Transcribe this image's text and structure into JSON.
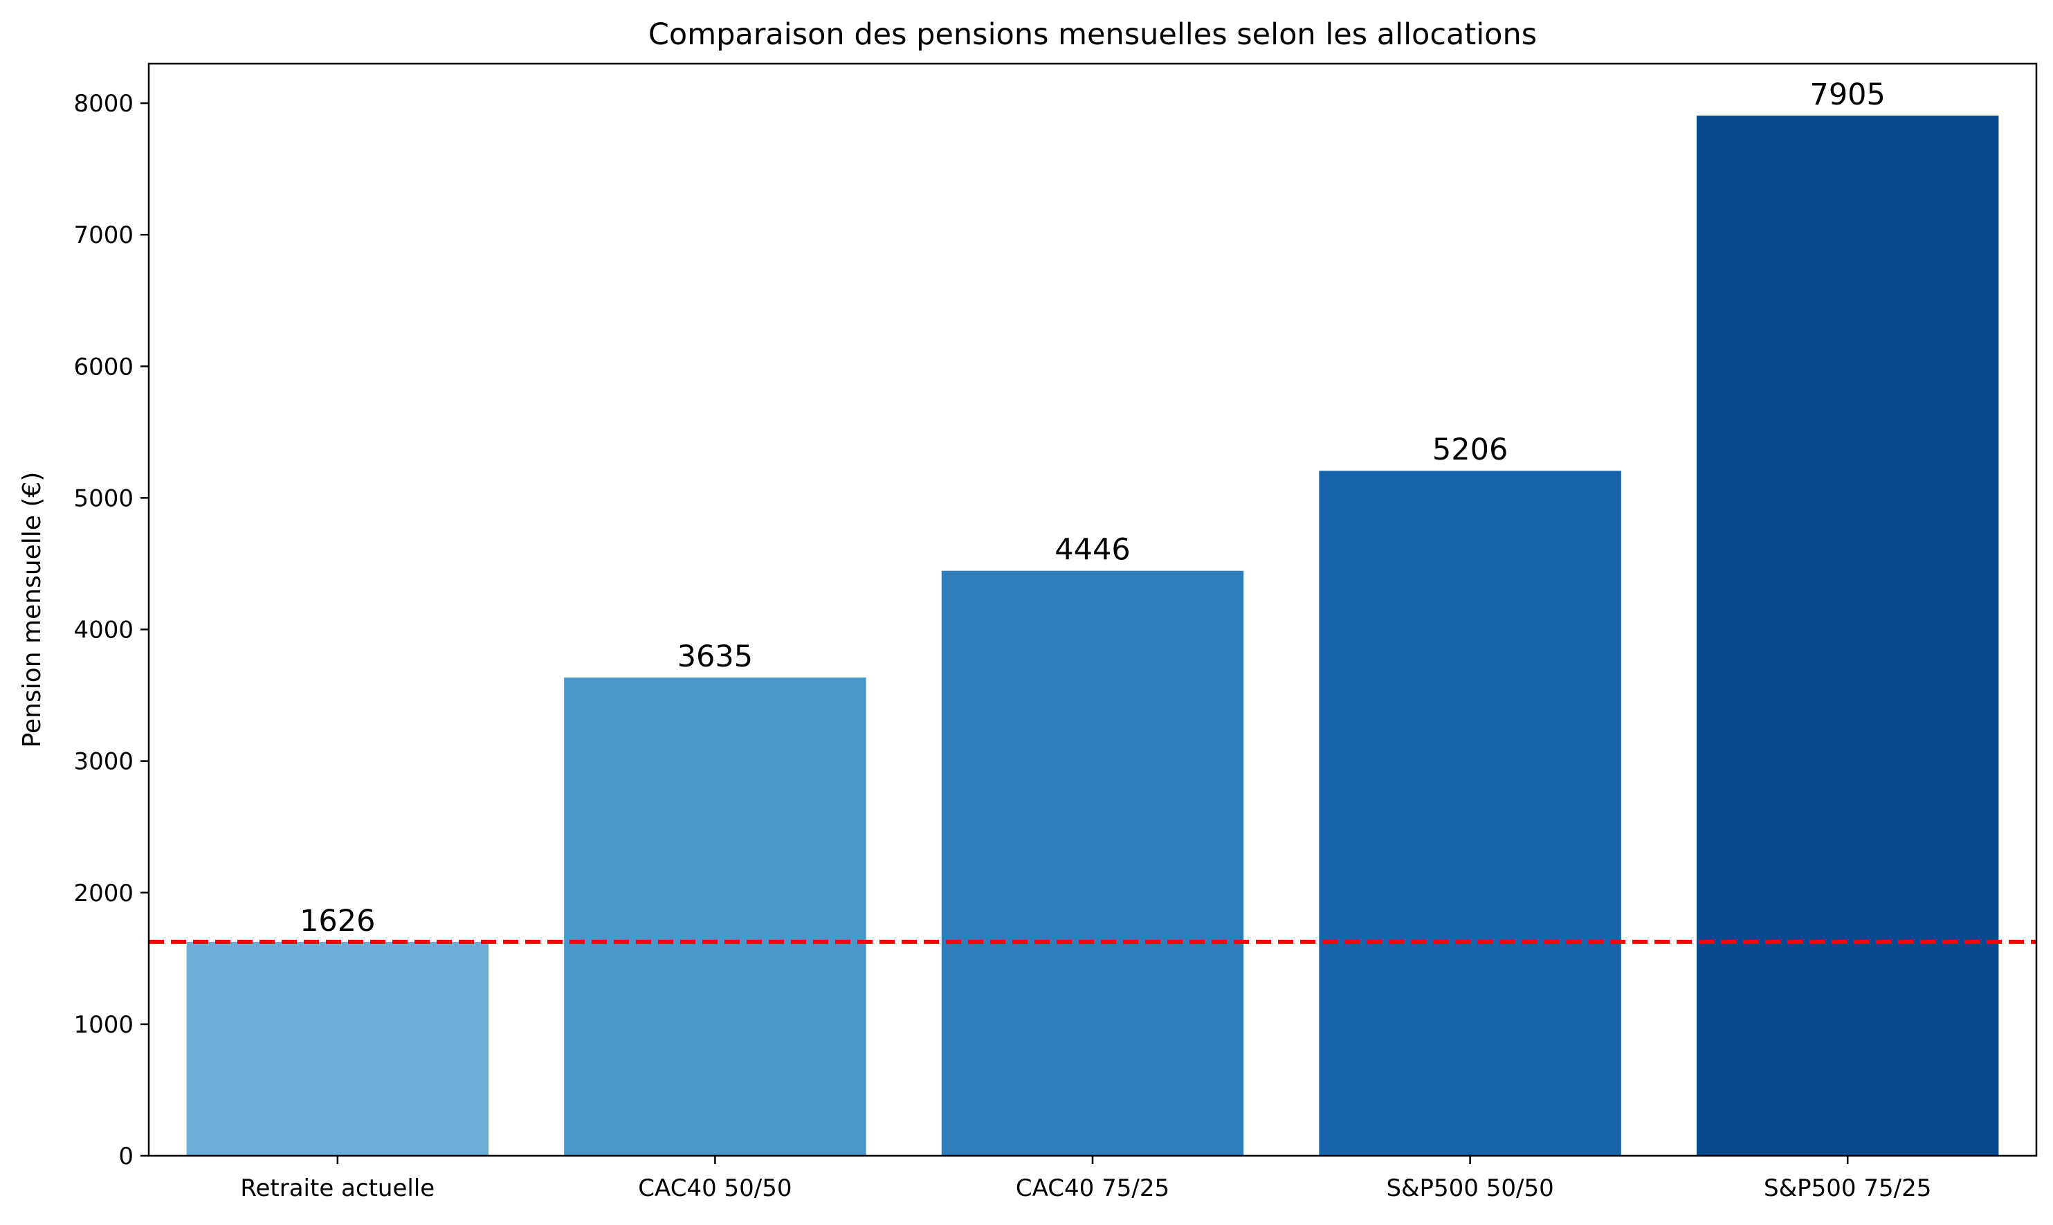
{
  "chart_data": {
    "type": "bar",
    "title": "Comparaison des pensions mensuelles selon les allocations",
    "xlabel": "",
    "ylabel": "Pension mensuelle (€)",
    "categories": [
      "Retraite actuelle",
      "CAC40 50/50",
      "CAC40 75/25",
      "S&P500 50/50",
      "S&P500 75/25"
    ],
    "values": [
      1626,
      3635,
      4446,
      5206,
      7905
    ],
    "data_labels": [
      "1626",
      "3635",
      "4446",
      "5206",
      "7905"
    ],
    "bar_colors": [
      "#6baed6",
      "#4a98c9",
      "#2e7ebc",
      "#1764ab",
      "#08488e"
    ],
    "ylim": [
      0,
      8300
    ],
    "yticks": [
      0,
      1000,
      2000,
      3000,
      4000,
      5000,
      6000,
      7000,
      8000
    ],
    "ytick_labels": [
      "0",
      "1000",
      "2000",
      "3000",
      "4000",
      "5000",
      "6000",
      "7000",
      "8000"
    ],
    "reference_line": {
      "value": 1626,
      "color": "#ff0000",
      "style": "dashed"
    },
    "grid": false,
    "legend": false
  }
}
